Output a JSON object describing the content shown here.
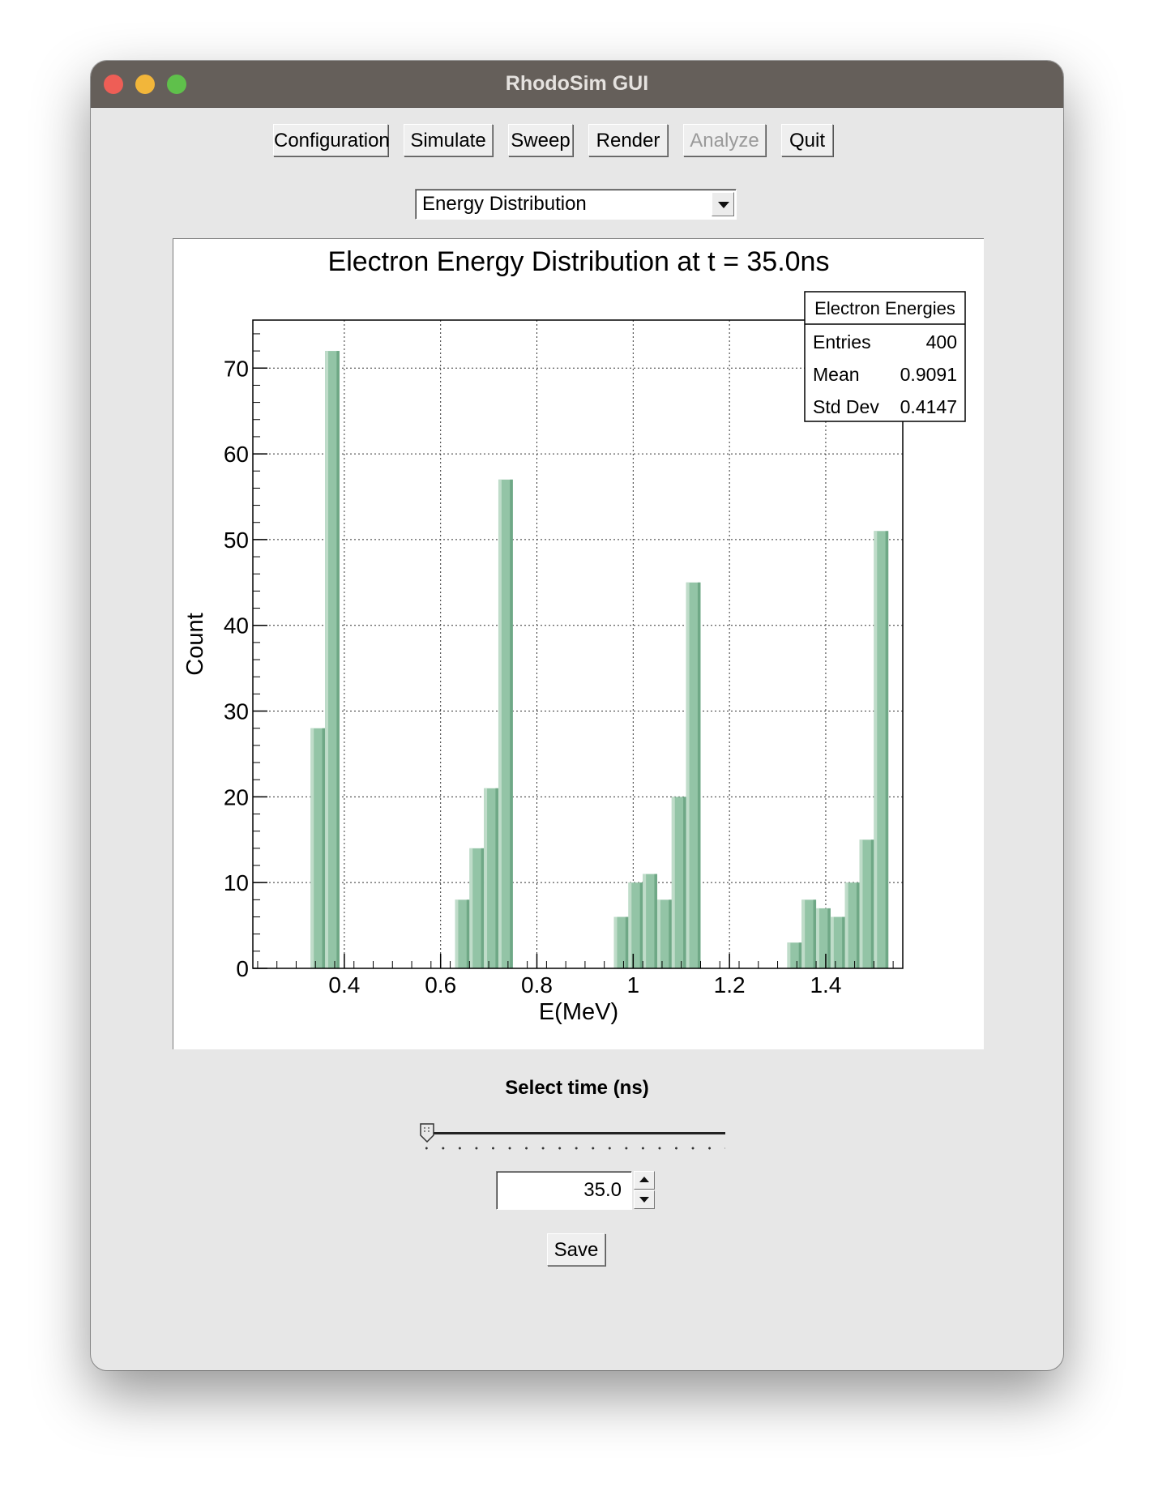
{
  "window": {
    "title": "RhodoSim GUI"
  },
  "toolbar": {
    "configuration": "Configuration",
    "simulate": "Simulate",
    "sweep": "Sweep",
    "render": "Render",
    "analyze": "Analyze",
    "quit": "Quit"
  },
  "view_select": {
    "selected": "Energy Distribution"
  },
  "chart_data": {
    "type": "bar",
    "title": "Electron Energy Distribution at t = 35.0ns",
    "xlabel": "E(MeV)",
    "ylabel": "Count",
    "xlim": [
      0.21,
      1.56
    ],
    "ylim": [
      0,
      75.6
    ],
    "bin_width": 0.03,
    "bar_color": "#93c4a6",
    "grid": true,
    "x_ticks": [
      "0.4",
      "0.6",
      "0.8",
      "1",
      "1.2",
      "1.4"
    ],
    "y_ticks": [
      "0",
      "10",
      "20",
      "30",
      "40",
      "50",
      "60",
      "70"
    ],
    "bins_start": [
      0.33,
      0.36,
      0.63,
      0.66,
      0.69,
      0.72,
      0.96,
      0.99,
      1.02,
      1.05,
      1.08,
      1.11,
      1.32,
      1.35,
      1.38,
      1.41,
      1.44,
      1.47,
      1.5
    ],
    "values": [
      28,
      72,
      8,
      14,
      21,
      57,
      6,
      10,
      11,
      8,
      20,
      45,
      3,
      8,
      7,
      6,
      10,
      15,
      51
    ],
    "stats": {
      "name": "Electron Energies",
      "rows": [
        {
          "label": "Entries",
          "value": "400"
        },
        {
          "label": "Mean",
          "value": "0.9091"
        },
        {
          "label": "Std Dev",
          "value": "0.4147"
        }
      ]
    }
  },
  "time_select": {
    "label": "Select time (ns)",
    "value": "35.0",
    "slider_fraction": 0.0
  },
  "save": {
    "label": "Save"
  }
}
